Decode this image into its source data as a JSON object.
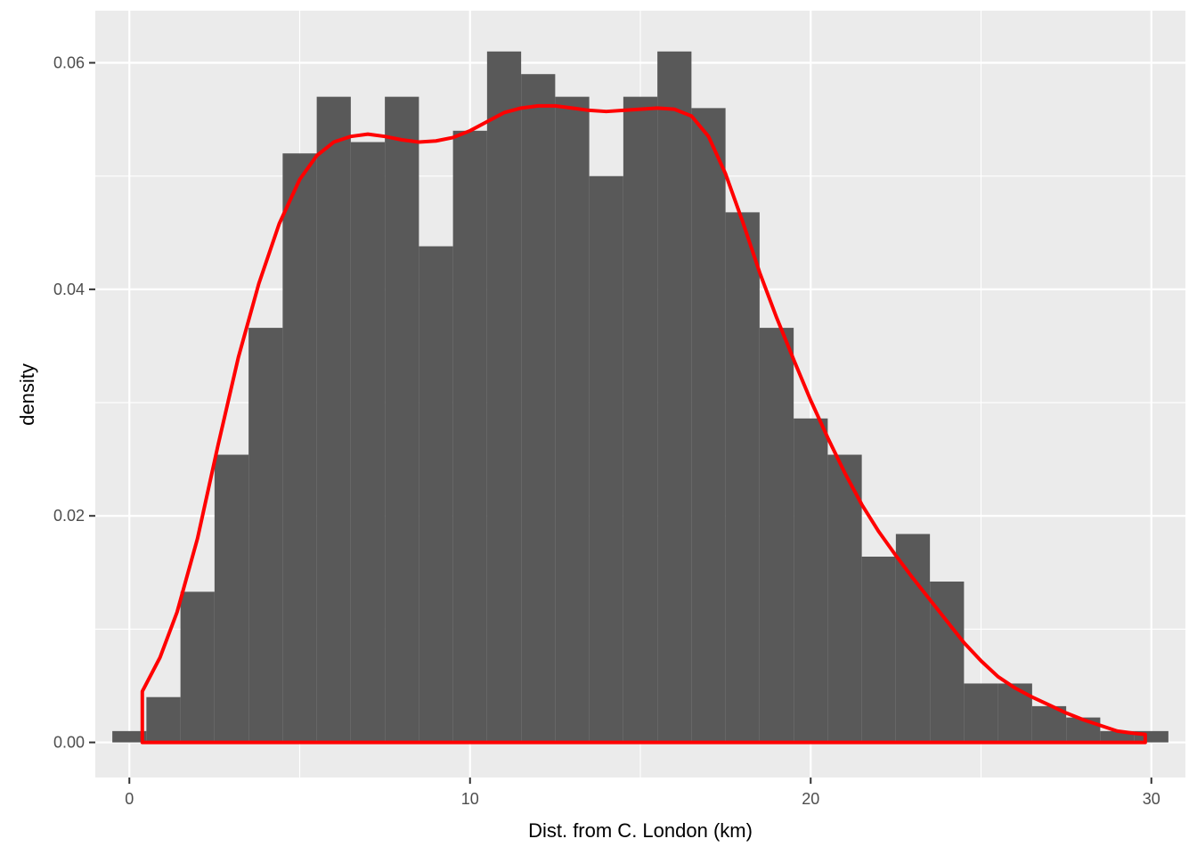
{
  "chart_data": {
    "type": "histogram",
    "title": "",
    "xlabel": "Dist. from C. London (km)",
    "ylabel": "density",
    "xlim": [
      -1.0,
      31.0
    ],
    "ylim": [
      -0.0031,
      0.0646
    ],
    "x_ticks": [
      0,
      10,
      20,
      30
    ],
    "x_tick_labels": [
      "0",
      "10",
      "20",
      "30"
    ],
    "y_ticks": [
      0.0,
      0.02,
      0.04,
      0.06
    ],
    "y_tick_labels": [
      "0.00",
      "0.02",
      "0.04",
      "0.06"
    ],
    "grid": true,
    "bin_width": 1.0,
    "bins": {
      "centers": [
        0,
        1,
        2,
        3,
        4,
        5,
        6,
        7,
        8,
        9,
        10,
        11,
        12,
        13,
        14,
        15,
        16,
        17,
        18,
        19,
        20,
        21,
        22,
        23,
        24,
        25,
        26,
        27,
        28,
        29,
        30
      ],
      "values": [
        0.001,
        0.004,
        0.0133,
        0.0254,
        0.0366,
        0.052,
        0.057,
        0.053,
        0.057,
        0.0438,
        0.054,
        0.061,
        0.059,
        0.057,
        0.05,
        0.057,
        0.061,
        0.056,
        0.0468,
        0.0366,
        0.0286,
        0.0254,
        0.0164,
        0.0184,
        0.0142,
        0.0052,
        0.0052,
        0.0032,
        0.0022,
        0.001,
        0.001
      ],
      "color": "#595959"
    },
    "density_curve": {
      "color": "#ff0000",
      "x": [
        0.38,
        0.38,
        0.9,
        1.4,
        2.0,
        2.6,
        3.2,
        3.8,
        4.4,
        5.0,
        5.5,
        6.0,
        6.5,
        7.0,
        7.5,
        8.0,
        8.5,
        9.0,
        9.5,
        10.0,
        10.5,
        11.0,
        11.5,
        12.0,
        12.5,
        13.0,
        13.5,
        14.0,
        14.5,
        15.0,
        15.5,
        16.0,
        16.5,
        17.0,
        17.5,
        18.0,
        18.5,
        19.0,
        19.5,
        20.0,
        20.5,
        21.0,
        21.5,
        22.0,
        22.5,
        23.0,
        23.5,
        24.0,
        24.5,
        25.0,
        25.5,
        26.0,
        26.5,
        27.0,
        27.5,
        28.0,
        28.5,
        29.0,
        29.5,
        29.82,
        29.82
      ],
      "y": [
        0.0,
        0.0045,
        0.0075,
        0.0115,
        0.018,
        0.0262,
        0.034,
        0.0405,
        0.0458,
        0.0497,
        0.0518,
        0.053,
        0.0535,
        0.0537,
        0.0535,
        0.0532,
        0.053,
        0.0531,
        0.0534,
        0.054,
        0.0548,
        0.0556,
        0.056,
        0.0562,
        0.0562,
        0.056,
        0.0558,
        0.0557,
        0.0558,
        0.0559,
        0.056,
        0.0559,
        0.0553,
        0.0535,
        0.0502,
        0.046,
        0.0415,
        0.0375,
        0.0338,
        0.0302,
        0.0269,
        0.0238,
        0.021,
        0.0186,
        0.0165,
        0.0145,
        0.0126,
        0.0107,
        0.0088,
        0.0072,
        0.0058,
        0.0048,
        0.004,
        0.0033,
        0.0026,
        0.002,
        0.0015,
        0.001,
        0.0008,
        0.0007,
        0.0
      ]
    }
  }
}
